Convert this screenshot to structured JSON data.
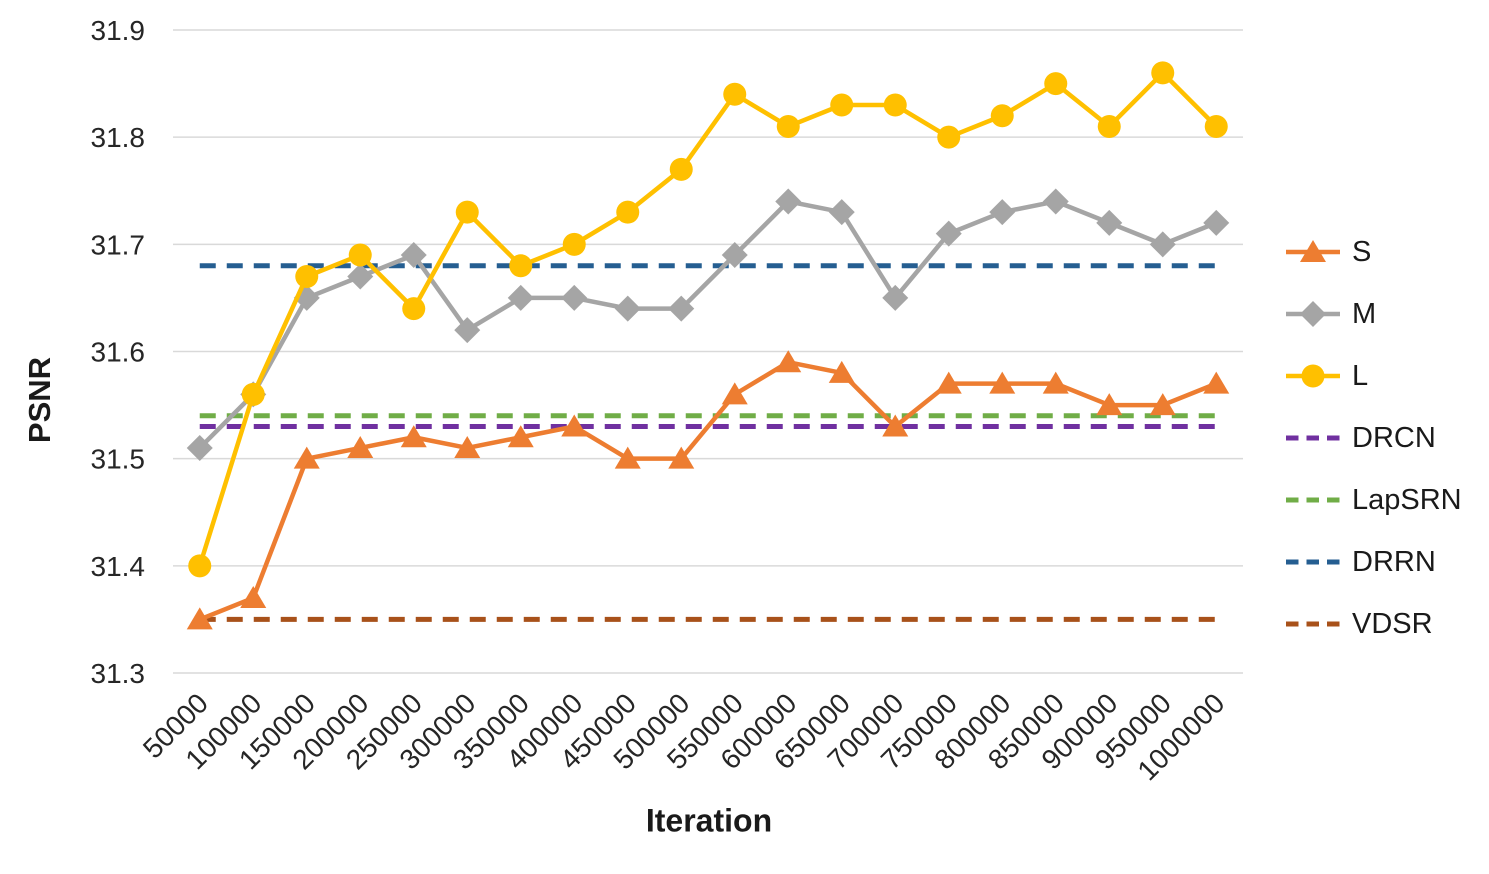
{
  "chart_data": {
    "type": "line",
    "title": "",
    "xlabel": "Iteration",
    "ylabel": "PSNR",
    "x": [
      50000,
      100000,
      150000,
      200000,
      250000,
      300000,
      350000,
      400000,
      450000,
      500000,
      550000,
      600000,
      650000,
      700000,
      750000,
      800000,
      850000,
      900000,
      950000,
      1000000
    ],
    "ylim": [
      31.3,
      31.9
    ],
    "yticks": [
      31.3,
      31.4,
      31.5,
      31.6,
      31.7,
      31.8,
      31.9
    ],
    "grid": "horizontal",
    "legend_position": "right",
    "series": [
      {
        "name": "S",
        "type": "line",
        "marker": "triangle",
        "color": "#ED7D31",
        "values": [
          31.35,
          31.37,
          31.5,
          31.51,
          31.52,
          31.51,
          31.52,
          31.53,
          31.5,
          31.5,
          31.56,
          31.59,
          31.58,
          31.53,
          31.57,
          31.57,
          31.57,
          31.55,
          31.55,
          31.57
        ]
      },
      {
        "name": "M",
        "type": "line",
        "marker": "diamond",
        "color": "#A5A5A5",
        "values": [
          31.51,
          31.56,
          31.65,
          31.67,
          31.69,
          31.62,
          31.65,
          31.65,
          31.64,
          31.64,
          31.69,
          31.74,
          31.73,
          31.65,
          31.71,
          31.73,
          31.74,
          31.72,
          31.7,
          31.72
        ]
      },
      {
        "name": "L",
        "type": "line",
        "marker": "circle",
        "color": "#FFC000",
        "values": [
          31.4,
          31.56,
          31.67,
          31.69,
          31.64,
          31.73,
          31.68,
          31.7,
          31.73,
          31.77,
          31.84,
          31.81,
          31.83,
          31.83,
          31.8,
          31.82,
          31.85,
          31.81,
          31.86,
          31.81
        ]
      },
      {
        "name": "DRCN",
        "type": "hline",
        "style": "dashed",
        "color": "#7030A0",
        "value": 31.53
      },
      {
        "name": "LapSRN",
        "type": "hline",
        "style": "dashed",
        "color": "#70AD47",
        "value": 31.54
      },
      {
        "name": "DRRN",
        "type": "hline",
        "style": "dashed",
        "color": "#255E91",
        "value": 31.68
      },
      {
        "name": "VDSR",
        "type": "hline",
        "style": "dashed",
        "color": "#A8511A",
        "value": 31.35
      }
    ]
  },
  "colors": {
    "grid": "#D9D9D9",
    "text": "#262626"
  }
}
